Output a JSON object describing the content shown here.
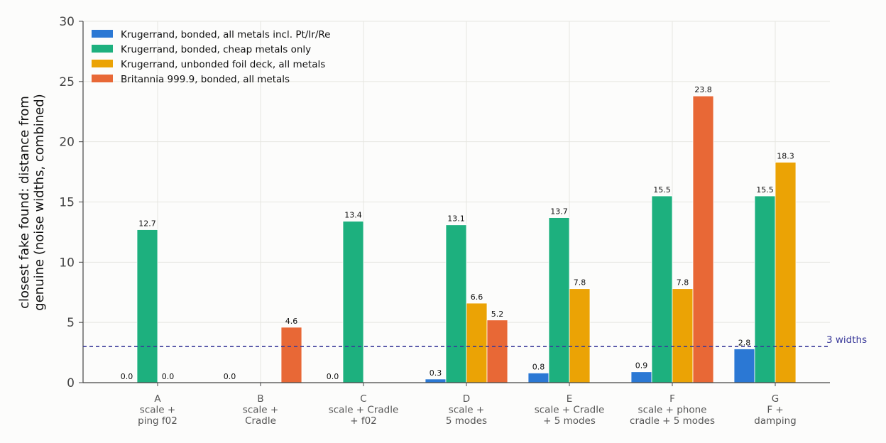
{
  "chart_data": {
    "type": "bar",
    "ylabel_lines": [
      "closest fake found: distance from",
      "genuine (noise widths, combined)"
    ],
    "ylim": [
      0,
      30
    ],
    "yticks": [
      0,
      5,
      10,
      15,
      20,
      25,
      30
    ],
    "grid": true,
    "legend_position": "top-left",
    "categories": [
      [
        "A",
        "scale +",
        "ping f02"
      ],
      [
        "B",
        "scale +",
        "Cradle"
      ],
      [
        "C",
        "scale + Cradle",
        "+ f02"
      ],
      [
        "D",
        "scale +",
        "5 modes"
      ],
      [
        "E",
        "scale + Cradle",
        "+ 5 modes"
      ],
      [
        "F",
        "scale + phone",
        "cradle + 5 modes"
      ],
      [
        "G",
        "F +",
        "damping"
      ]
    ],
    "series": [
      {
        "name": "Krugerrand, bonded, all metals incl. Pt/Ir/Re",
        "color": "#2b78d4",
        "values": [
          0.0,
          0.0,
          0.0,
          0.3,
          0.8,
          0.9,
          2.8
        ]
      },
      {
        "name": "Krugerrand, bonded, cheap metals only",
        "color": "#1db07e",
        "values": [
          12.7,
          null,
          13.4,
          13.1,
          13.7,
          15.5,
          15.5
        ]
      },
      {
        "name": "Krugerrand, unbonded foil deck, all metals",
        "color": "#eba305",
        "values": [
          0.0,
          null,
          null,
          6.6,
          7.8,
          7.8,
          18.3
        ]
      },
      {
        "name": "Britannia 999.9, bonded, all metals",
        "color": "#e86836",
        "values": [
          null,
          4.6,
          null,
          5.2,
          null,
          23.8,
          null
        ]
      }
    ],
    "reference_line": {
      "value": 3,
      "label": "3 widths",
      "color": "#3a3a9a"
    }
  }
}
